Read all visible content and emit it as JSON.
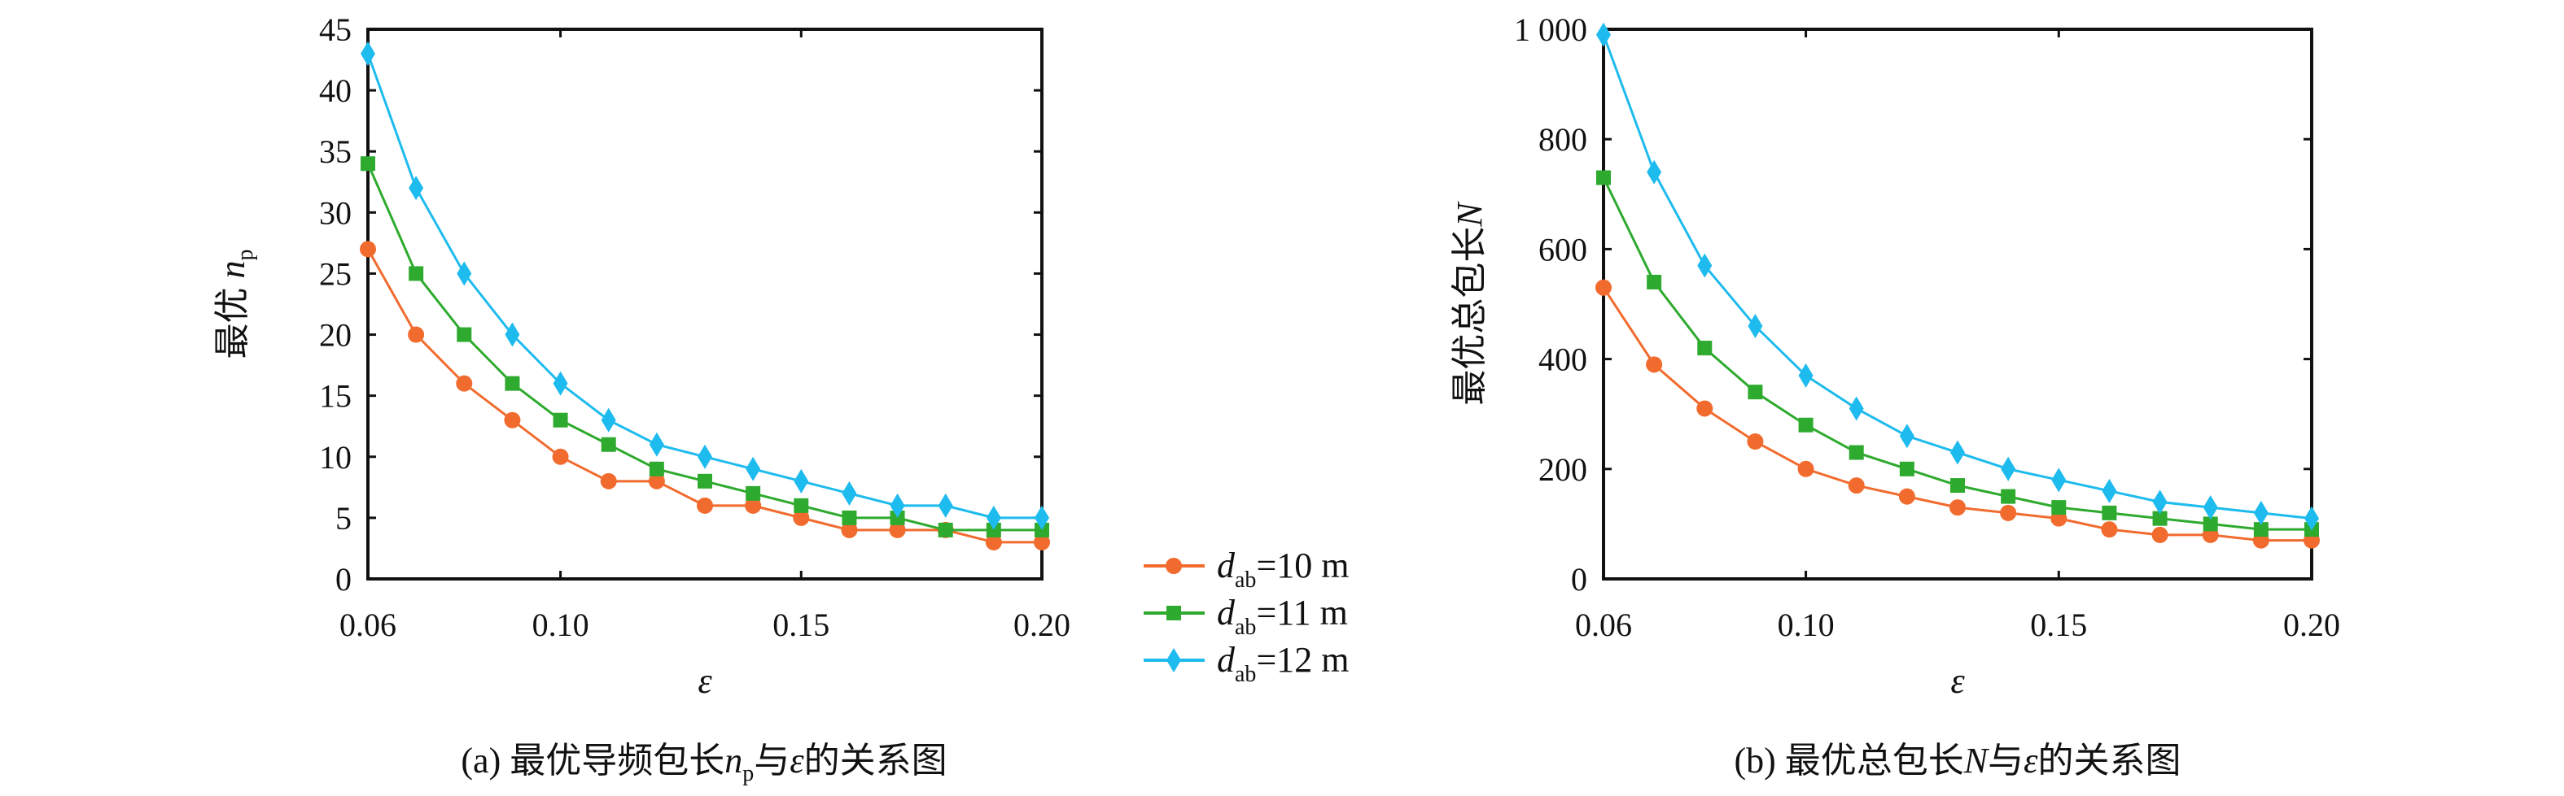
{
  "colors": {
    "d10": "#f26b2e",
    "d11": "#2eaa2e",
    "d12": "#1ebbee",
    "axis": "#111111"
  },
  "legend": {
    "placement": "between-charts",
    "items": [
      {
        "var": "d",
        "sub": "ab",
        "rest": "=10 m",
        "marker": "circle",
        "color_key": "d10"
      },
      {
        "var": "d",
        "sub": "ab",
        "rest": "=11 m",
        "marker": "square",
        "color_key": "d11"
      },
      {
        "var": "d",
        "sub": "ab",
        "rest": "=12 m",
        "marker": "diamond",
        "color_key": "d12"
      }
    ]
  },
  "chart_data": [
    {
      "type": "line",
      "caption": {
        "prefix": "(a) 最优导频包长",
        "var": "n",
        "sub": "p",
        "mid": "与",
        "var2": "ε",
        "suffix": "的关系图"
      },
      "xlabel": "ε",
      "ylabel": {
        "text": "最优 ",
        "var": "n",
        "sub": "p"
      },
      "xlim": [
        0.06,
        0.2
      ],
      "ylim": [
        0,
        45
      ],
      "xticks": [
        "0.06",
        "0.10",
        "0.15",
        "0.20"
      ],
      "yticks": [
        "0",
        "5",
        "10",
        "15",
        "20",
        "25",
        "30",
        "35",
        "40",
        "45"
      ],
      "grid": false,
      "x": [
        0.06,
        0.07,
        0.08,
        0.09,
        0.1,
        0.11,
        0.12,
        0.13,
        0.14,
        0.15,
        0.16,
        0.17,
        0.18,
        0.19,
        0.2
      ],
      "series": [
        {
          "name": "dab=10 m",
          "values": [
            27,
            20,
            16,
            13,
            10,
            8,
            8,
            6,
            6,
            5,
            4,
            4,
            4,
            3,
            3
          ]
        },
        {
          "name": "dab=11 m",
          "values": [
            34,
            25,
            20,
            16,
            13,
            11,
            9,
            8,
            7,
            6,
            5,
            5,
            4,
            4,
            4
          ]
        },
        {
          "name": "dab=12 m",
          "values": [
            43,
            32,
            25,
            20,
            16,
            13,
            11,
            10,
            9,
            8,
            7,
            6,
            6,
            5,
            5
          ]
        }
      ]
    },
    {
      "type": "line",
      "caption": {
        "prefix": "(b) 最优总包长",
        "var": "N",
        "sub": "",
        "mid": "与",
        "var2": "ε",
        "suffix": "的关系图"
      },
      "xlabel": "ε",
      "ylabel": {
        "text": "最优总包长",
        "var": "N",
        "sub": ""
      },
      "xlim": [
        0.06,
        0.2
      ],
      "ylim": [
        0,
        1000
      ],
      "xticks": [
        "0.06",
        "0.10",
        "0.15",
        "0.20"
      ],
      "yticks": [
        "0",
        "200",
        "400",
        "600",
        "800",
        "1 000"
      ],
      "grid": false,
      "x": [
        0.06,
        0.07,
        0.08,
        0.09,
        0.1,
        0.11,
        0.12,
        0.13,
        0.14,
        0.15,
        0.16,
        0.17,
        0.18,
        0.19,
        0.2
      ],
      "series": [
        {
          "name": "dab=10 m",
          "values": [
            530,
            390,
            310,
            250,
            200,
            170,
            150,
            130,
            120,
            110,
            90,
            80,
            80,
            70,
            70
          ]
        },
        {
          "name": "dab=11 m",
          "values": [
            730,
            540,
            420,
            340,
            280,
            230,
            200,
            170,
            150,
            130,
            120,
            110,
            100,
            90,
            90
          ]
        },
        {
          "name": "dab=12 m",
          "values": [
            990,
            740,
            570,
            460,
            370,
            310,
            260,
            230,
            200,
            180,
            160,
            140,
            130,
            120,
            110
          ]
        }
      ]
    }
  ]
}
